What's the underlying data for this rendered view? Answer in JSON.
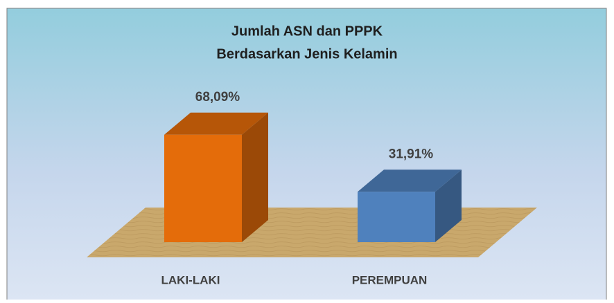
{
  "chart_data": {
    "type": "bar3d",
    "title": [
      "Jumlah ASN dan PPPK",
      "Berdasarkan Jenis Kelamin"
    ],
    "categories": [
      "LAKI-LAKI",
      "PEREMPUAN"
    ],
    "values": [
      68.09,
      31.91
    ],
    "value_labels": [
      "68,09%",
      "31,91%"
    ],
    "colors": [
      "#e46c0a",
      "#4f81bd"
    ]
  }
}
